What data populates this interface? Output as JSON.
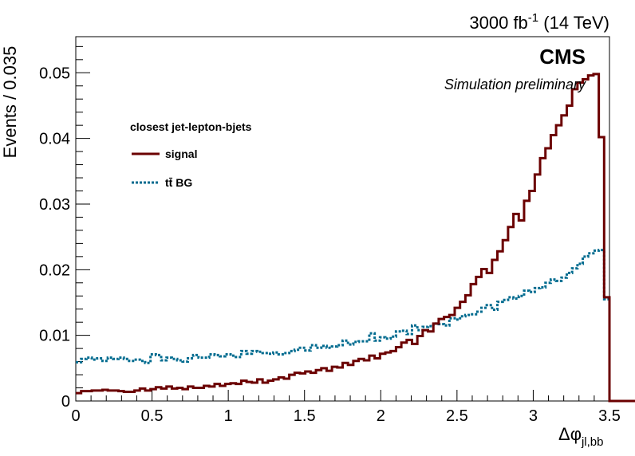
{
  "chart_data": {
    "type": "line",
    "title": "",
    "header_right_main": "3000 fb",
    "header_right_sup": "-1",
    "header_right_tail": " (14 TeV)",
    "experiment": "CMS",
    "experiment_sub": "Simulation preliminary",
    "xlabel_main": "Δφ",
    "xlabel_sub": "jl,bb",
    "ylabel": "Events / 0.035",
    "xlim": [
      0,
      3.5
    ],
    "ylim": [
      0,
      0.0555
    ],
    "xticks": [
      "0",
      "0.5",
      "1",
      "1.5",
      "2",
      "2.5",
      "3",
      "3.5"
    ],
    "yticks": [
      "0",
      "0.01",
      "0.02",
      "0.03",
      "0.04",
      "0.05"
    ],
    "bin_width": 0.035,
    "legend_title": "closest jet-lepton-bjets",
    "legend_placement": "top-left",
    "series": [
      {
        "name": "signal",
        "style": "solid",
        "color": "#6b0000",
        "values": [
          0.0012,
          0.0015,
          0.0015,
          0.0016,
          0.0016,
          0.0017,
          0.0016,
          0.0016,
          0.0015,
          0.0014,
          0.0014,
          0.0016,
          0.0019,
          0.0016,
          0.0018,
          0.0021,
          0.0019,
          0.0022,
          0.0019,
          0.002,
          0.0018,
          0.0022,
          0.002,
          0.002,
          0.0023,
          0.0022,
          0.0026,
          0.0023,
          0.0026,
          0.0027,
          0.0026,
          0.0031,
          0.0029,
          0.0028,
          0.0033,
          0.0028,
          0.0031,
          0.0033,
          0.0036,
          0.0034,
          0.004,
          0.0043,
          0.0042,
          0.0045,
          0.0043,
          0.0047,
          0.005,
          0.0046,
          0.0052,
          0.0051,
          0.0058,
          0.0055,
          0.0061,
          0.0064,
          0.0062,
          0.0069,
          0.0065,
          0.0072,
          0.0074,
          0.0076,
          0.0082,
          0.0089,
          0.0093,
          0.0087,
          0.0099,
          0.0108,
          0.0106,
          0.0118,
          0.0125,
          0.0128,
          0.0131,
          0.0142,
          0.0151,
          0.0161,
          0.0178,
          0.0189,
          0.0201,
          0.0195,
          0.0215,
          0.0228,
          0.0245,
          0.0265,
          0.0285,
          0.0275,
          0.0305,
          0.032,
          0.0345,
          0.037,
          0.0385,
          0.0405,
          0.042,
          0.0435,
          0.045,
          0.0475,
          0.0485,
          0.049,
          0.0496,
          0.0498,
          0.0402,
          0.0158,
          0,
          0,
          0,
          0,
          0,
          0,
          0,
          0,
          0,
          0
        ]
      },
      {
        "name": "tt̄ BG",
        "style": "dotted",
        "color": "#006b8f",
        "values": [
          0.0059,
          0.0064,
          0.0066,
          0.0063,
          0.0065,
          0.0061,
          0.0066,
          0.0064,
          0.0066,
          0.0064,
          0.0061,
          0.0063,
          0.0061,
          0.0058,
          0.0071,
          0.007,
          0.0062,
          0.0066,
          0.0064,
          0.0062,
          0.006,
          0.0065,
          0.007,
          0.0066,
          0.0066,
          0.0071,
          0.007,
          0.0068,
          0.0071,
          0.0069,
          0.0067,
          0.0076,
          0.0072,
          0.0076,
          0.0075,
          0.0073,
          0.0072,
          0.0074,
          0.0071,
          0.0073,
          0.0076,
          0.0078,
          0.0081,
          0.0077,
          0.0085,
          0.0081,
          0.0084,
          0.0081,
          0.0083,
          0.0085,
          0.0092,
          0.0086,
          0.009,
          0.0091,
          0.0091,
          0.0103,
          0.0092,
          0.0097,
          0.0095,
          0.0098,
          0.0106,
          0.0107,
          0.0102,
          0.0115,
          0.0108,
          0.0113,
          0.0114,
          0.0118,
          0.0117,
          0.0115,
          0.0126,
          0.0124,
          0.0129,
          0.0131,
          0.0132,
          0.0136,
          0.0142,
          0.0146,
          0.0139,
          0.0151,
          0.0154,
          0.0158,
          0.0156,
          0.016,
          0.0168,
          0.0166,
          0.0172,
          0.0173,
          0.018,
          0.0185,
          0.0183,
          0.0188,
          0.0195,
          0.0202,
          0.0209,
          0.022,
          0.0225,
          0.0229,
          0.023,
          0.0155,
          0,
          0,
          0,
          0,
          0,
          0,
          0,
          0,
          0,
          0
        ]
      }
    ]
  }
}
